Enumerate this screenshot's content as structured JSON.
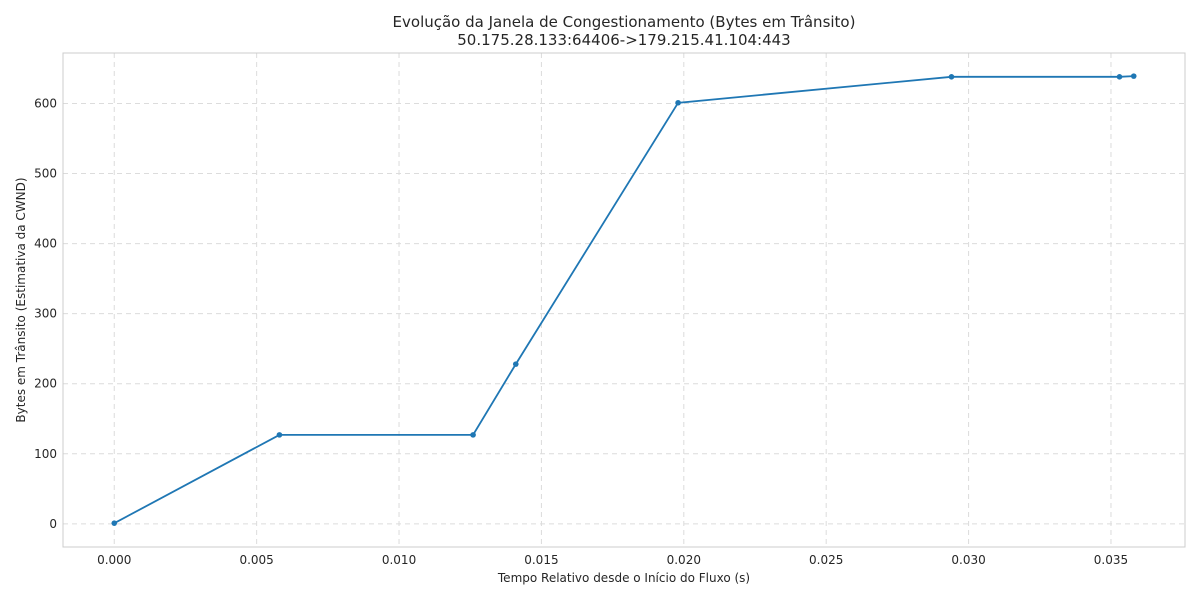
{
  "chart_data": {
    "type": "line",
    "title": "Evolução da Janela de Congestionamento (Bytes em Trânsito)",
    "subtitle": "50.175.28.133:64406->179.215.41.104:443",
    "xlabel": "Tempo Relativo desde o Início do Fluxo (s)",
    "ylabel": "Bytes em Trânsito (Estimativa da CWND)",
    "xlim": [
      -0.0018,
      0.0376
    ],
    "ylim": [
      -33,
      672
    ],
    "xticks": [
      0.0,
      0.005,
      0.01,
      0.015,
      0.02,
      0.025,
      0.03,
      0.035
    ],
    "xtick_labels": [
      "0.000",
      "0.005",
      "0.010",
      "0.015",
      "0.020",
      "0.025",
      "0.030",
      "0.035"
    ],
    "yticks": [
      0,
      100,
      200,
      300,
      400,
      500,
      600
    ],
    "ytick_labels": [
      "0",
      "100",
      "200",
      "300",
      "400",
      "500",
      "600"
    ],
    "grid": true,
    "color": "#1f77b4",
    "x": [
      0.0,
      0.0058,
      0.0126,
      0.0141,
      0.0198,
      0.0294,
      0.0353,
      0.0358
    ],
    "y": [
      1,
      127,
      127,
      228,
      601,
      638,
      638,
      639
    ]
  }
}
